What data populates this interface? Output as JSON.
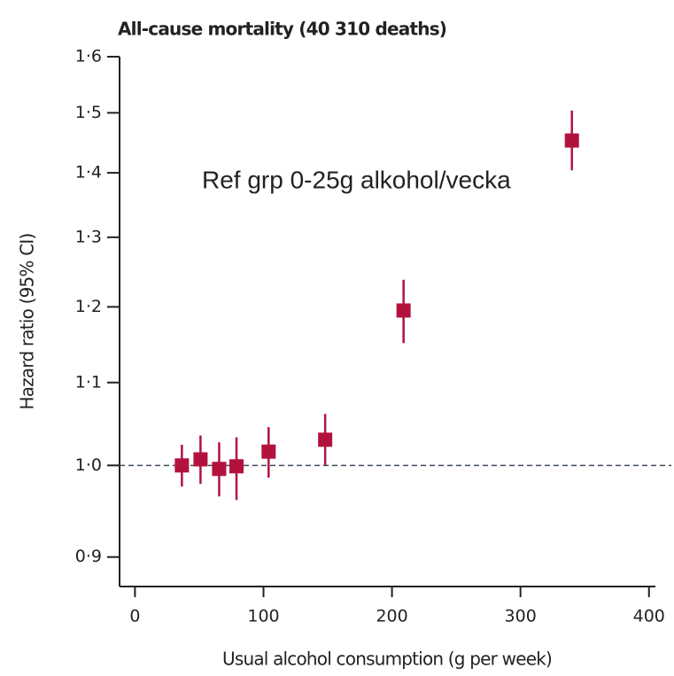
{
  "chart_data": {
    "type": "errorbar",
    "title": "All-cause mortality (40 310 deaths)",
    "annotation": "Ref grp 0-25g alkohol/vecka",
    "x_label": "Usual alcohol consumption (g per week)",
    "y_label": "Hazard ratio (95% CI)",
    "x": [
      36.5,
      51,
      65.5,
      79,
      104,
      148,
      209,
      340
    ],
    "series": [
      {
        "color": "#b3123f",
        "values": [
          1.0,
          1.007,
          0.996,
          0.999,
          1.016,
          1.03,
          1.195,
          1.453
        ],
        "lower": [
          0.976,
          0.979,
          0.965,
          0.961,
          0.986,
          1.0,
          1.151,
          1.404
        ],
        "upper": [
          1.024,
          1.035,
          1.027,
          1.033,
          1.045,
          1.061,
          1.238,
          1.504
        ]
      }
    ],
    "xlim": [
      -12,
      405
    ],
    "xticks": [
      0,
      100,
      200,
      300,
      400
    ],
    "ylim": [
      0.87,
      1.6
    ],
    "ylog": true,
    "yticks": [
      {
        "value": 0.9,
        "label": "0·9"
      },
      {
        "value": 1.0,
        "label": "1·0"
      },
      {
        "value": 1.1,
        "label": "1·1"
      },
      {
        "value": 1.2,
        "label": "1·2"
      },
      {
        "value": 1.3,
        "label": "1·3"
      },
      {
        "value": 1.4,
        "label": "1·4"
      },
      {
        "value": 1.5,
        "label": "1·5"
      },
      {
        "value": 1.6,
        "label": "1·6"
      }
    ],
    "reference_line": 1.0
  }
}
